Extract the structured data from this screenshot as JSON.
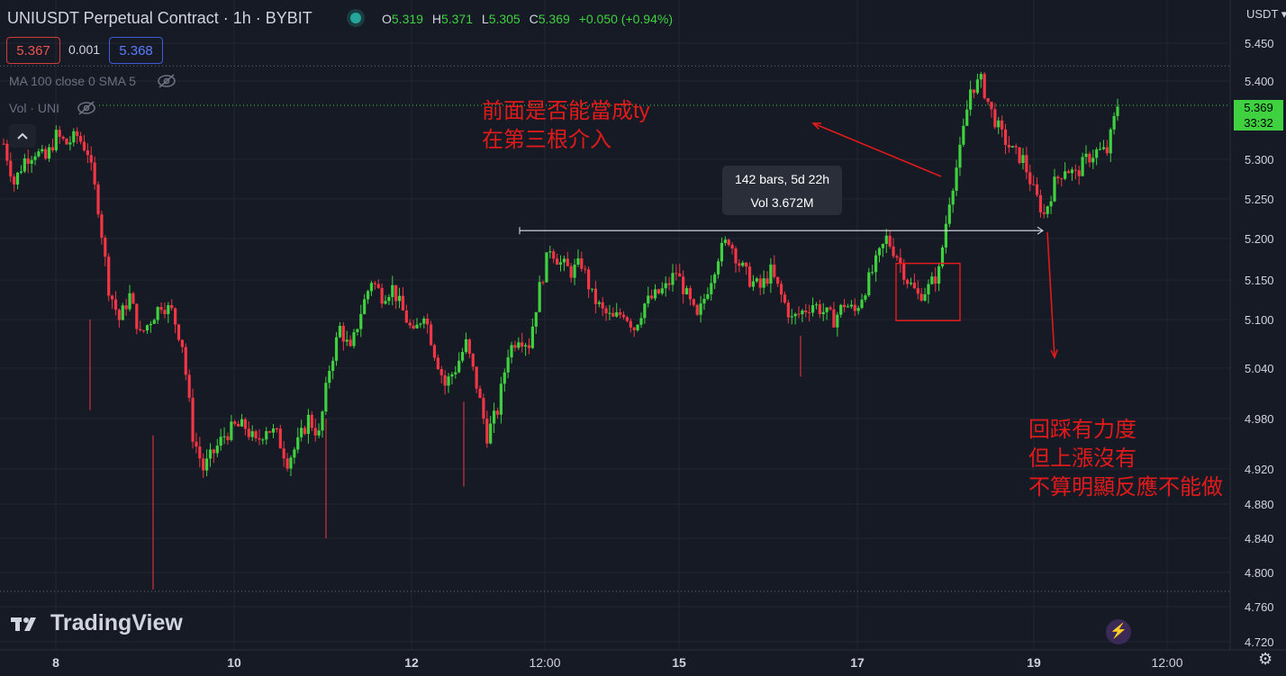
{
  "header": {
    "title": "UNIUSDT Perpetual Contract · 1h · BYBIT",
    "ohlc": [
      {
        "k": "O",
        "v": "5.319"
      },
      {
        "k": "H",
        "v": "5.371"
      },
      {
        "k": "L",
        "v": "5.305"
      },
      {
        "k": "C",
        "v": "5.369"
      }
    ],
    "change": "+0.050 (+0.94%)",
    "bid": "5.367",
    "spread": "0.001",
    "ask": "5.368",
    "indicator_ma": "MA 100 close 0 SMA 5",
    "indicator_vol": "Vol · UNI",
    "collapse_icon": "chevron-up-icon"
  },
  "annotations": {
    "note_top": "前面是否能當成ty\n在第三根介入",
    "note_bottom": "回踩有力度\n但上漲沒有\n不算明顯反應不能做",
    "tooltip_line1": "142 bars, 5d 22h",
    "tooltip_line2": "Vol 3.672M",
    "color": "#e01a1a"
  },
  "axis": {
    "currency": "USDT",
    "current_price": "5.369",
    "countdown": "33:32"
  },
  "branding": {
    "logo": "TradingView"
  },
  "colors": {
    "up": "#3fd13f",
    "down": "#f23645",
    "background": "#161a25",
    "grid": "#232733"
  },
  "chart_data": {
    "type": "candlestick",
    "title": "UNIUSDT Perpetual Contract · 1h · BYBIT",
    "y_ticks": [
      "5.450",
      "5.400",
      "5.300",
      "5.250",
      "5.200",
      "5.150",
      "5.100",
      "5.040",
      "4.980",
      "4.920",
      "4.880",
      "4.840",
      "4.800",
      "4.760",
      "4.720"
    ],
    "x_ticks": [
      "8",
      "10",
      "12",
      "12:00",
      "15",
      "17",
      "19",
      "12:00"
    ],
    "ylim": [
      4.72,
      5.45
    ],
    "measure": {
      "from_price": 5.21,
      "to_price": 5.21,
      "bars": 142,
      "duration": "5d 22h",
      "volume": "3.672M"
    },
    "highlight_box": {
      "low": 5.11,
      "high": 5.17
    },
    "current_price": 5.369,
    "day_high": 5.42,
    "day_low": 4.78,
    "close_path": [
      [
        0,
        5.32
      ],
      [
        1,
        5.27
      ],
      [
        2,
        5.3
      ],
      [
        3,
        5.31
      ],
      [
        4,
        5.3
      ],
      [
        5,
        5.33
      ],
      [
        6,
        5.32
      ],
      [
        7,
        5.33
      ],
      [
        8,
        5.31
      ],
      [
        9,
        5.24
      ],
      [
        10,
        5.14
      ],
      [
        11,
        5.1
      ],
      [
        12,
        5.13
      ],
      [
        13,
        5.08
      ],
      [
        14,
        5.1
      ],
      [
        15,
        5.12
      ],
      [
        16,
        5.11
      ],
      [
        17,
        5.07
      ],
      [
        18,
        4.96
      ],
      [
        19,
        4.92
      ],
      [
        20,
        4.94
      ],
      [
        21,
        4.96
      ],
      [
        22,
        4.97
      ],
      [
        23,
        4.97
      ],
      [
        24,
        4.95
      ],
      [
        25,
        4.97
      ],
      [
        26,
        4.96
      ],
      [
        27,
        4.93
      ],
      [
        28,
        4.95
      ],
      [
        29,
        4.98
      ],
      [
        30,
        4.96
      ],
      [
        31,
        5.04
      ],
      [
        32,
        5.09
      ],
      [
        33,
        5.06
      ],
      [
        34,
        5.11
      ],
      [
        35,
        5.15
      ],
      [
        36,
        5.13
      ],
      [
        37,
        5.14
      ],
      [
        38,
        5.11
      ],
      [
        39,
        5.08
      ],
      [
        40,
        5.11
      ],
      [
        41,
        5.06
      ],
      [
        42,
        5.02
      ],
      [
        43,
        5.04
      ],
      [
        44,
        5.07
      ],
      [
        45,
        5.02
      ],
      [
        46,
        4.96
      ],
      [
        47,
        4.99
      ],
      [
        48,
        5.06
      ],
      [
        49,
        5.08
      ],
      [
        50,
        5.07
      ],
      [
        51,
        5.14
      ],
      [
        52,
        5.19
      ],
      [
        53,
        5.17
      ],
      [
        54,
        5.16
      ],
      [
        55,
        5.17
      ],
      [
        56,
        5.13
      ],
      [
        57,
        5.11
      ],
      [
        58,
        5.1
      ],
      [
        59,
        5.11
      ],
      [
        60,
        5.09
      ],
      [
        61,
        5.12
      ],
      [
        62,
        5.13
      ],
      [
        63,
        5.14
      ],
      [
        64,
        5.16
      ],
      [
        65,
        5.13
      ],
      [
        66,
        5.1
      ],
      [
        67,
        5.14
      ],
      [
        68,
        5.18
      ],
      [
        69,
        5.2
      ],
      [
        70,
        5.17
      ],
      [
        71,
        5.15
      ],
      [
        72,
        5.14
      ],
      [
        73,
        5.16
      ],
      [
        74,
        5.13
      ],
      [
        75,
        5.1
      ],
      [
        76,
        5.11
      ],
      [
        77,
        5.12
      ],
      [
        78,
        5.11
      ],
      [
        79,
        5.1
      ],
      [
        80,
        5.12
      ],
      [
        81,
        5.11
      ],
      [
        82,
        5.14
      ],
      [
        83,
        5.17
      ],
      [
        84,
        5.2
      ],
      [
        85,
        5.18
      ],
      [
        86,
        5.15
      ],
      [
        87,
        5.13
      ],
      [
        88,
        5.14
      ],
      [
        89,
        5.16
      ],
      [
        90,
        5.25
      ],
      [
        91,
        5.31
      ],
      [
        92,
        5.39
      ],
      [
        93,
        5.4
      ],
      [
        94,
        5.36
      ],
      [
        95,
        5.33
      ],
      [
        96,
        5.31
      ],
      [
        97,
        5.3
      ],
      [
        98,
        5.26
      ],
      [
        99,
        5.23
      ],
      [
        100,
        5.27
      ],
      [
        101,
        5.29
      ],
      [
        102,
        5.28
      ],
      [
        103,
        5.3
      ],
      [
        104,
        5.31
      ],
      [
        105,
        5.31
      ],
      [
        106,
        5.37
      ]
    ]
  }
}
